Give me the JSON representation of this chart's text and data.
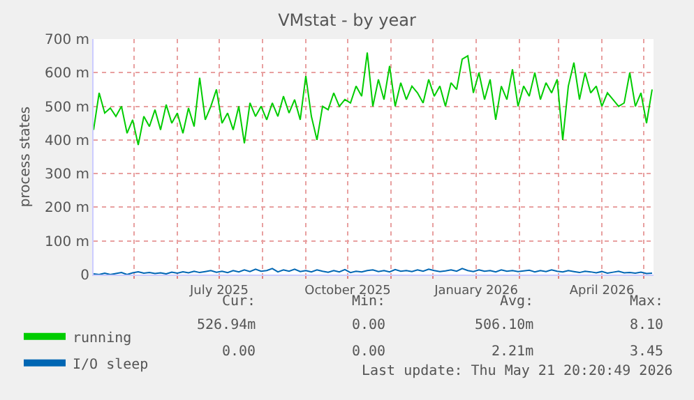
{
  "chart_data": {
    "type": "line",
    "title": "VMstat - by year",
    "ylabel": "process states",
    "x": [
      "2025-04-02",
      "2025-04-06",
      "2025-04-10",
      "2025-04-14",
      "2025-04-18",
      "2025-04-22",
      "2025-04-26",
      "2025-04-30",
      "2025-05-04",
      "2025-05-08",
      "2025-05-12",
      "2025-05-16",
      "2025-05-20",
      "2025-05-24",
      "2025-05-28",
      "2025-06-01",
      "2025-06-05",
      "2025-06-09",
      "2025-06-13",
      "2025-06-17",
      "2025-06-21",
      "2025-06-25",
      "2025-06-29",
      "2025-07-03",
      "2025-07-07",
      "2025-07-11",
      "2025-07-15",
      "2025-07-19",
      "2025-07-23",
      "2025-07-27",
      "2025-07-31",
      "2025-08-04",
      "2025-08-08",
      "2025-08-12",
      "2025-08-16",
      "2025-08-20",
      "2025-08-24",
      "2025-08-28",
      "2025-09-01",
      "2025-09-05",
      "2025-09-09",
      "2025-09-13",
      "2025-09-17",
      "2025-09-21",
      "2025-09-25",
      "2025-09-29",
      "2025-10-03",
      "2025-10-07",
      "2025-10-11",
      "2025-10-15",
      "2025-10-19",
      "2025-10-23",
      "2025-10-27",
      "2025-10-31",
      "2025-11-04",
      "2025-11-08",
      "2025-11-12",
      "2025-11-16",
      "2025-11-20",
      "2025-11-24",
      "2025-11-28",
      "2025-12-02",
      "2025-12-06",
      "2025-12-10",
      "2025-12-14",
      "2025-12-18",
      "2025-12-22",
      "2025-12-26",
      "2025-12-30",
      "2026-01-03",
      "2026-01-07",
      "2026-01-11",
      "2026-01-15",
      "2026-01-19",
      "2026-01-23",
      "2026-01-27",
      "2026-01-31",
      "2026-02-04",
      "2026-02-08",
      "2026-02-12",
      "2026-02-16",
      "2026-02-20",
      "2026-02-24",
      "2026-02-28",
      "2026-03-04",
      "2026-03-08",
      "2026-03-12",
      "2026-03-16",
      "2026-03-20",
      "2026-03-24",
      "2026-03-28",
      "2026-04-01",
      "2026-04-05",
      "2026-04-09",
      "2026-04-13",
      "2026-04-17",
      "2026-04-21",
      "2026-04-25",
      "2026-04-29",
      "2026-05-03",
      "2026-05-07"
    ],
    "series": [
      {
        "name": "running",
        "color": "#00cc00",
        "values": [
          430,
          540,
          480,
          495,
          470,
          500,
          420,
          460,
          385,
          470,
          440,
          490,
          430,
          505,
          450,
          480,
          420,
          495,
          440,
          585,
          460,
          500,
          550,
          450,
          480,
          430,
          500,
          390,
          510,
          470,
          500,
          460,
          510,
          470,
          530,
          480,
          520,
          460,
          590,
          470,
          400,
          500,
          490,
          540,
          500,
          520,
          510,
          560,
          530,
          660,
          500,
          580,
          520,
          620,
          500,
          570,
          520,
          560,
          540,
          510,
          580,
          530,
          560,
          500,
          570,
          550,
          640,
          650,
          540,
          600,
          520,
          580,
          460,
          560,
          520,
          610,
          500,
          560,
          530,
          600,
          520,
          570,
          540,
          580,
          400,
          560,
          630,
          520,
          600,
          540,
          560,
          500,
          540,
          520,
          500,
          510,
          600,
          500,
          540,
          450,
          550
        ]
      },
      {
        "name": "I/O sleep",
        "color": "#0066b3",
        "values": [
          2,
          0,
          4,
          0,
          3,
          6,
          0,
          5,
          8,
          4,
          6,
          3,
          5,
          2,
          7,
          4,
          8,
          5,
          10,
          6,
          9,
          12,
          7,
          10,
          6,
          12,
          8,
          14,
          9,
          16,
          10,
          12,
          18,
          8,
          14,
          10,
          16,
          9,
          12,
          8,
          14,
          10,
          7,
          12,
          8,
          15,
          6,
          10,
          8,
          12,
          14,
          9,
          12,
          8,
          15,
          10,
          12,
          9,
          14,
          10,
          16,
          12,
          9,
          11,
          14,
          10,
          18,
          12,
          9,
          14,
          10,
          12,
          8,
          14,
          10,
          12,
          9,
          11,
          13,
          8,
          12,
          9,
          14,
          10,
          8,
          12,
          9,
          6,
          10,
          8,
          5,
          9,
          4,
          7,
          10,
          5,
          6,
          4,
          7,
          3,
          4
        ]
      }
    ],
    "xlim": [
      "2025-04-02",
      "2026-05-08"
    ],
    "xticks": [
      {
        "value": "2025-05-01",
        "label": null
      },
      {
        "value": "2025-06-01",
        "label": null
      },
      {
        "value": "2025-07-01",
        "label": "July 2025"
      },
      {
        "value": "2025-08-01",
        "label": null
      },
      {
        "value": "2025-09-01",
        "label": null
      },
      {
        "value": "2025-10-01",
        "label": "October 2025"
      },
      {
        "value": "2025-11-01",
        "label": null
      },
      {
        "value": "2025-12-01",
        "label": null
      },
      {
        "value": "2026-01-01",
        "label": "January 2026"
      },
      {
        "value": "2026-02-01",
        "label": null
      },
      {
        "value": "2026-03-01",
        "label": null
      },
      {
        "value": "2026-04-01",
        "label": "April 2026"
      },
      {
        "value": "2026-05-01",
        "label": null
      }
    ],
    "ylim": [
      0,
      700
    ],
    "yticks": [
      0,
      {
        "value": 100,
        "label": "100 m"
      },
      {
        "value": 200,
        "label": "200 m"
      },
      {
        "value": 300,
        "label": "300 m"
      },
      {
        "value": 400,
        "label": "400 m"
      },
      {
        "value": 500,
        "label": "500 m"
      },
      {
        "value": 600,
        "label": "600 m"
      },
      {
        "value": 700,
        "label": "700 m"
      }
    ],
    "grid": true,
    "legend": "bottom left",
    "line_style": "solid",
    "annotations": [
      "Cur:",
      "Min:",
      "Avg:",
      "Max:",
      "526.94m",
      "0.00",
      "506.10m",
      "8.10",
      "0.00",
      "0.00",
      "2.21m",
      "3.45",
      "Last update: Thu May 21 20:20:49 2026"
    ]
  }
}
